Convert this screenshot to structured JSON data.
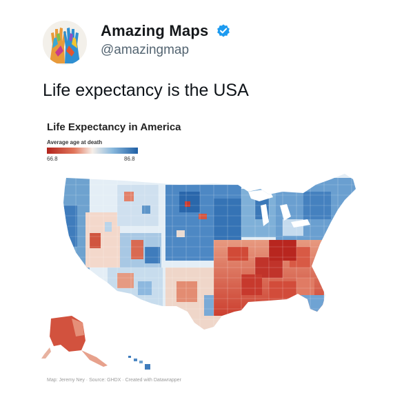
{
  "account": {
    "display_name": "Amazing Maps",
    "handle": "@amazingmap",
    "avatar_icon": "painted-hands-icon",
    "verified_icon": "verified-badge-icon",
    "verified_color": "#1d9bf0"
  },
  "tweet": {
    "text": "Life expectancy is the USA"
  },
  "map": {
    "title": "Life Expectancy in America",
    "legend_title": "Average age at death",
    "legend_min": "66.8",
    "legend_max": "86.8",
    "color_low": "#c9352b",
    "color_mid": "#f6efe9",
    "color_high": "#1f5fa5",
    "footer": "Map: Jeremy Ney · Source: GHDX · Created with Datawrapper"
  }
}
